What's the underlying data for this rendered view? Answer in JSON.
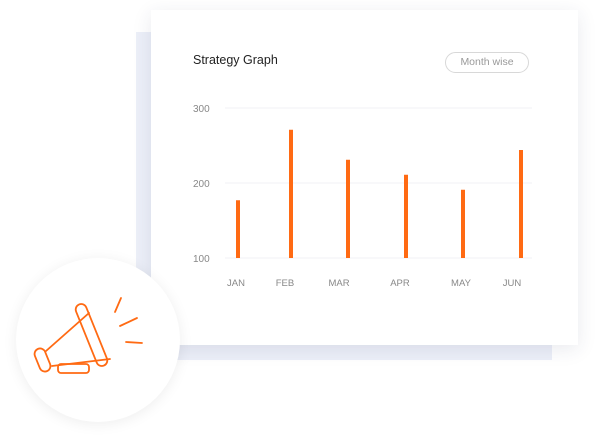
{
  "card": {
    "title": "Strategy Graph",
    "filter_button": "Month wise"
  },
  "icon": "megaphone-icon",
  "colors": {
    "bar": "#ff6a13",
    "backdrop": "#eceff8",
    "grid": "#f0f1f5"
  },
  "chart_data": {
    "type": "bar",
    "title": "Strategy Graph",
    "categories": [
      "JAN",
      "FEB",
      "MAR",
      "APR",
      "MAY",
      "JUN"
    ],
    "values": [
      177,
      271,
      231,
      211,
      191,
      244
    ],
    "yticks": [
      "100",
      "200",
      "300"
    ],
    "ylim": [
      100,
      300
    ],
    "grid": true,
    "xlabel": "",
    "ylabel": ""
  }
}
